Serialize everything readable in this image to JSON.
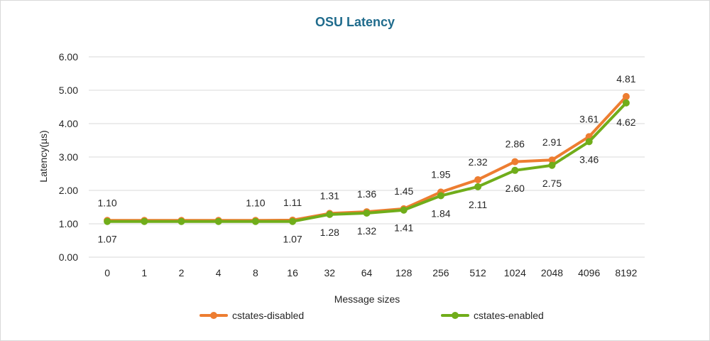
{
  "chart_data": {
    "type": "line",
    "title": "OSU Latency",
    "xlabel": "Message sizes",
    "ylabel": "Latency(µs)",
    "categories": [
      "0",
      "1",
      "2",
      "4",
      "8",
      "16",
      "32",
      "64",
      "128",
      "256",
      "512",
      "1024",
      "2048",
      "4096",
      "8192"
    ],
    "ylim": [
      0,
      6
    ],
    "yticks": [
      "0.00",
      "1.00",
      "2.00",
      "3.00",
      "4.00",
      "5.00",
      "6.00"
    ],
    "grid": true,
    "legend_position": "bottom",
    "series": [
      {
        "name": "cstates-disabled",
        "color": "#ed7d31",
        "values": [
          1.1,
          1.1,
          1.1,
          1.1,
          1.1,
          1.11,
          1.31,
          1.36,
          1.45,
          1.95,
          2.32,
          2.86,
          2.91,
          3.61,
          4.81
        ],
        "labels": [
          "1.10",
          "",
          "",
          "",
          "1.10",
          "1.11",
          "1.31",
          "1.36",
          "1.45",
          "1.95",
          "2.32",
          "2.86",
          "2.91",
          "3.61",
          "4.81"
        ]
      },
      {
        "name": "cstates-enabled",
        "color": "#70ad1a",
        "values": [
          1.07,
          1.07,
          1.07,
          1.07,
          1.07,
          1.07,
          1.28,
          1.32,
          1.41,
          1.84,
          2.11,
          2.6,
          2.75,
          3.46,
          4.62
        ],
        "labels": [
          "1.07",
          "",
          "",
          "",
          "",
          "1.07",
          "1.28",
          "1.32",
          "1.41",
          "1.84",
          "2.11",
          "2.60",
          "2.75",
          "3.46",
          "4.62"
        ]
      }
    ]
  }
}
